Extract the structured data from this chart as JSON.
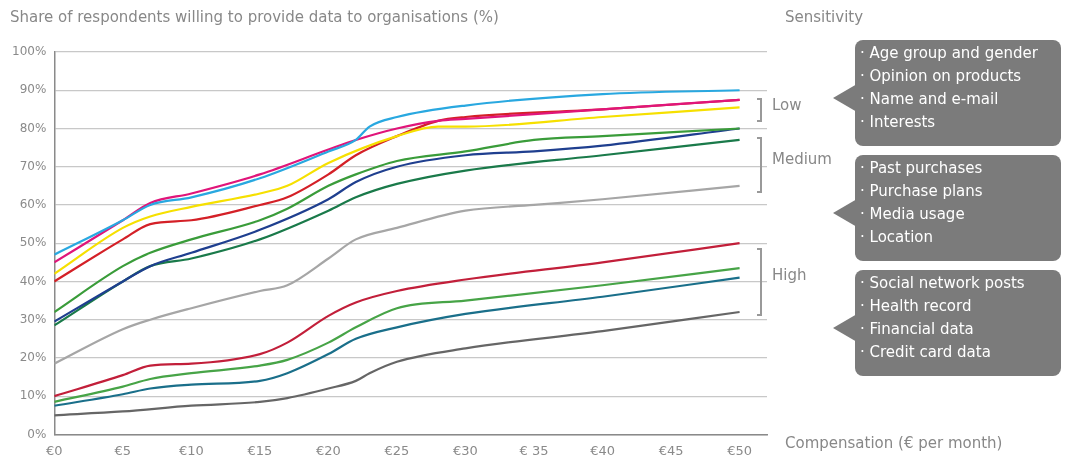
{
  "chart_data": {
    "type": "line",
    "title": "Share of respondents willing to provide data to organisations (%)",
    "xlabel": "Compensation (€ per month)",
    "annotations": [
      "Sensitivity",
      "Low",
      "· Age group and gender",
      "· Opinion on products",
      "· Name and e-mail",
      "· Interests",
      "Medium",
      "· Past purchases",
      "· Purchase plans",
      "· Media usage",
      "· Location",
      "High",
      "· Social network posts",
      "· Health record",
      "· Financial data",
      "· Credit card data"
    ],
    "xlim": [
      0,
      52
    ],
    "ylim": [
      0,
      100
    ],
    "xticks": [
      {
        "value": 0,
        "label": "€0"
      },
      {
        "value": 5,
        "label": "€5"
      },
      {
        "value": 10,
        "label": "€10"
      },
      {
        "value": 15,
        "label": "€15"
      },
      {
        "value": 20,
        "label": "€20"
      },
      {
        "value": 25,
        "label": "€25"
      },
      {
        "value": 30,
        "label": "€30"
      },
      {
        "value": 35,
        "label": "€ 35"
      },
      {
        "value": 40,
        "label": "€40"
      },
      {
        "value": 45,
        "label": "€45"
      },
      {
        "value": 50,
        "label": "€50"
      }
    ],
    "yticks": [
      {
        "value": 0,
        "label": "0%"
      },
      {
        "value": 10,
        "label": "10%"
      },
      {
        "value": 20,
        "label": "20%"
      },
      {
        "value": 30,
        "label": "30%"
      },
      {
        "value": 40,
        "label": "40%"
      },
      {
        "value": 50,
        "label": "50%"
      },
      {
        "value": 60,
        "label": "60%"
      },
      {
        "value": 70,
        "label": "70%"
      },
      {
        "value": 80,
        "label": "80%"
      },
      {
        "value": 90,
        "label": "90%"
      },
      {
        "value": 100,
        "label": "100%"
      }
    ],
    "grid": "y",
    "legend": false,
    "marker": "none",
    "line_style": "solid",
    "series": [
      {
        "color": "#29a8e0",
        "x": [
          0,
          5,
          7,
          10,
          15,
          20,
          22,
          23,
          25,
          30,
          40,
          50
        ],
        "values": [
          47,
          56,
          60,
          62,
          67,
          74,
          77,
          80.5,
          83,
          86,
          89,
          90
        ]
      },
      {
        "color": "#e0157a",
        "x": [
          0,
          5,
          7,
          10,
          15,
          20,
          22,
          25,
          28,
          30,
          40,
          50
        ],
        "values": [
          45,
          56,
          60.5,
          63,
          68,
          74.5,
          77,
          80,
          82,
          82.5,
          85,
          87.5
        ]
      },
      {
        "color": "#f6e000",
        "x": [
          0,
          5,
          7,
          10,
          15,
          17,
          20,
          25,
          28,
          30,
          40,
          50
        ],
        "values": [
          42,
          54,
          57,
          59.5,
          63,
          65,
          71,
          78,
          80.5,
          80.5,
          83,
          85.5
        ]
      },
      {
        "color": "#d42027",
        "x": [
          0,
          5,
          7,
          10,
          15,
          17,
          20,
          22,
          25,
          28,
          30,
          40,
          50
        ],
        "values": [
          40,
          51,
          55,
          56,
          60,
          62,
          68,
          73,
          78,
          82,
          83,
          85,
          87.5
        ]
      },
      {
        "color": "#3a9c3a",
        "x": [
          0,
          5,
          7,
          10,
          15,
          17,
          20,
          22,
          25,
          30,
          35,
          40,
          50
        ],
        "values": [
          32,
          44,
          47.5,
          51,
          56,
          59,
          65,
          68,
          71.5,
          74,
          77,
          78,
          80
        ]
      },
      {
        "color": "#1f3f8f",
        "x": [
          0,
          5,
          7,
          10,
          15,
          20,
          22,
          25,
          30,
          35,
          40,
          50
        ],
        "values": [
          29.5,
          40,
          44,
          47.5,
          53.5,
          61.5,
          66,
          70,
          73,
          74,
          75.5,
          80
        ]
      },
      {
        "color": "#1a7a4a",
        "x": [
          0,
          5,
          7,
          10,
          15,
          20,
          22,
          25,
          30,
          40,
          50
        ],
        "values": [
          28.5,
          40,
          44,
          46,
          51,
          58.5,
          62,
          65.5,
          69,
          73,
          77
        ]
      },
      {
        "color": "#a6a6a6",
        "x": [
          0,
          5,
          7,
          10,
          15,
          17,
          20,
          22,
          25,
          30,
          35,
          40,
          50
        ],
        "values": [
          18.5,
          27.5,
          30,
          33,
          37.5,
          39,
          46,
          51,
          54,
          58.5,
          60,
          61.5,
          65
        ]
      },
      {
        "color": "#c21f3a",
        "x": [
          0,
          5,
          7,
          10,
          15,
          17,
          20,
          22,
          25,
          30,
          40,
          50
        ],
        "values": [
          10,
          15.5,
          18,
          18.5,
          21,
          24,
          31,
          34.5,
          37.5,
          40.5,
          45,
          50
        ]
      },
      {
        "color": "#47a447",
        "x": [
          0,
          5,
          7,
          10,
          15,
          17,
          20,
          22,
          25,
          30,
          40,
          50
        ],
        "values": [
          8.5,
          12.5,
          14.5,
          16,
          18,
          19.5,
          24,
          28,
          33,
          35,
          39,
          43.5
        ]
      },
      {
        "color": "#1a6f8a",
        "x": [
          0,
          5,
          7,
          10,
          15,
          17,
          20,
          22,
          25,
          30,
          40,
          50
        ],
        "values": [
          7.5,
          10.5,
          12,
          13,
          14,
          16,
          21,
          25,
          28,
          31.5,
          36,
          41
        ]
      },
      {
        "color": "#666666",
        "x": [
          0,
          5,
          10,
          15,
          17,
          20,
          22,
          23,
          25,
          30,
          40,
          50
        ],
        "values": [
          5,
          6,
          7.5,
          8.5,
          9.5,
          12,
          14,
          16,
          19,
          22.5,
          27,
          32
        ]
      }
    ]
  }
}
